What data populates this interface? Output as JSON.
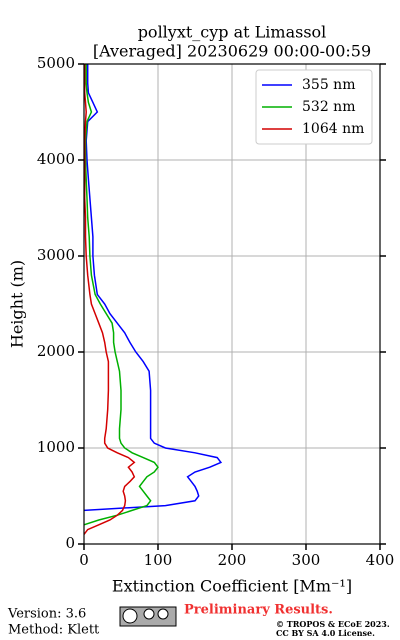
{
  "chart_data": {
    "type": "line",
    "title": "pollyxt_cyp at Limassol",
    "subtitle": "[Averaged] 20230629 00:00-00:59",
    "x_label": "Extinction Coefficient [Mm⁻¹]",
    "y_label": "Height (m)",
    "y": [
      100,
      150,
      200,
      250,
      300,
      350,
      400,
      450,
      500,
      550,
      600,
      650,
      700,
      750,
      800,
      850,
      900,
      950,
      1000,
      1050,
      1100,
      1200,
      1400,
      1600,
      1800,
      1900,
      2000,
      2100,
      2200,
      2300,
      2400,
      2500,
      2600,
      2800,
      3000,
      3200,
      3400,
      3600,
      3800,
      4000,
      4200,
      4400,
      4500,
      4600,
      4700,
      4800,
      5000
    ],
    "series": [
      {
        "name": "355 nm",
        "color": "#0000ff",
        "values": [
          null,
          null,
          null,
          null,
          null,
          0,
          110,
          150,
          155,
          153,
          150,
          145,
          140,
          150,
          170,
          185,
          180,
          150,
          110,
          95,
          90,
          90,
          90,
          90,
          88,
          80,
          70,
          62,
          55,
          45,
          35,
          28,
          18,
          14,
          12,
          12,
          10,
          8,
          6,
          4,
          3,
          5,
          18,
          12,
          6,
          5,
          5
        ]
      },
      {
        "name": "532 nm",
        "color": "#00b000",
        "values": [
          null,
          null,
          0,
          20,
          45,
          65,
          85,
          90,
          85,
          80,
          75,
          80,
          85,
          95,
          100,
          95,
          80,
          65,
          55,
          50,
          48,
          48,
          50,
          50,
          48,
          45,
          42,
          40,
          40,
          38,
          30,
          22,
          15,
          10,
          8,
          7,
          5,
          4,
          3,
          2,
          2,
          4,
          10,
          6,
          4,
          3,
          3
        ]
      },
      {
        "name": "1064 nm",
        "color": "#d40000",
        "values": [
          0,
          5,
          20,
          35,
          45,
          52,
          55,
          56,
          55,
          53,
          55,
          62,
          68,
          65,
          60,
          68,
          60,
          45,
          32,
          28,
          28,
          30,
          32,
          33,
          33,
          33,
          30,
          28,
          25,
          20,
          15,
          10,
          8,
          5,
          3,
          2,
          2,
          1,
          1,
          1,
          1,
          2,
          3,
          2,
          1,
          1,
          1
        ]
      }
    ],
    "xlim": [
      0,
      400
    ],
    "xticks": [
      0,
      100,
      200,
      300,
      400
    ],
    "ylim": [
      0,
      5000
    ],
    "yticks": [
      0,
      1000,
      2000,
      3000,
      4000,
      5000
    ],
    "grid": true,
    "legend": "upper right"
  },
  "footer": {
    "version": "Version: 3.6",
    "method": "Method: Klett",
    "preliminary": "Preliminary Results.",
    "copyright": "© TROPOS & ECoE 2023.",
    "license": "CC BY SA 4.0 License."
  }
}
